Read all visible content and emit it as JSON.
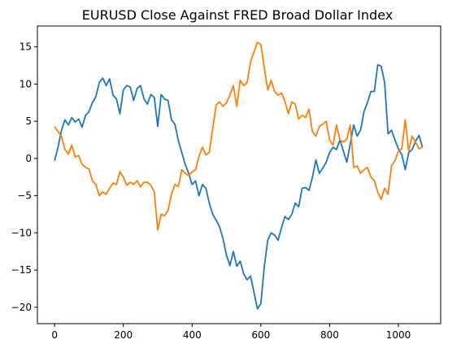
{
  "chart_data": {
    "type": "line",
    "title": "EURUSD Close Against FRED Broad Dollar Index",
    "xlabel": "",
    "ylabel": "",
    "xlim": [
      -50,
      1123
    ],
    "ylim": [
      -22.2,
      17.8
    ],
    "xticks": [
      0,
      200,
      400,
      600,
      800,
      1000
    ],
    "yticks": [
      -20,
      -15,
      -10,
      -5,
      0,
      5,
      10,
      15
    ],
    "grid": false,
    "legend": "none",
    "series": [
      {
        "color": "#1f77b4",
        "x": [
          0,
          10,
          20,
          30,
          40,
          50,
          60,
          70,
          80,
          90,
          100,
          110,
          120,
          130,
          140,
          150,
          160,
          170,
          180,
          190,
          200,
          210,
          220,
          230,
          240,
          250,
          260,
          270,
          280,
          290,
          300,
          310,
          320,
          330,
          340,
          350,
          360,
          370,
          380,
          390,
          400,
          410,
          420,
          430,
          440,
          450,
          460,
          470,
          480,
          490,
          500,
          510,
          520,
          530,
          540,
          550,
          560,
          570,
          580,
          590,
          600,
          610,
          620,
          630,
          640,
          650,
          660,
          670,
          680,
          690,
          700,
          710,
          720,
          730,
          740,
          750,
          760,
          770,
          780,
          790,
          800,
          810,
          820,
          830,
          840,
          850,
          860,
          870,
          880,
          890,
          900,
          910,
          920,
          930,
          940,
          950,
          960,
          970,
          980,
          990,
          1000,
          1010,
          1020,
          1030,
          1040,
          1050,
          1060,
          1070
        ],
        "y": [
          -0.3,
          1.5,
          3.8,
          5.2,
          4.5,
          5.5,
          4.9,
          5.3,
          4.2,
          5.8,
          6.3,
          7.5,
          8.3,
          10.2,
          10.8,
          9.8,
          10.7,
          8.5,
          8.0,
          6.0,
          9.2,
          9.8,
          9.6,
          7.8,
          9.4,
          9.8,
          8.0,
          7.3,
          8.6,
          8.2,
          4.3,
          8.6,
          8.0,
          7.8,
          5.2,
          4.6,
          2.4,
          0.8,
          -0.8,
          -2.0,
          -3.5,
          -3.0,
          -5.0,
          -3.5,
          -4.0,
          -6.0,
          -7.5,
          -8.3,
          -9.2,
          -10.8,
          -13.0,
          -14.4,
          -12.5,
          -14.5,
          -13.8,
          -15.5,
          -16.3,
          -15.8,
          -18.0,
          -20.2,
          -19.5,
          -14.5,
          -11.0,
          -10.0,
          -10.3,
          -11.0,
          -9.3,
          -7.8,
          -8.2,
          -7.5,
          -6.0,
          -6.5,
          -4.0,
          -3.9,
          -4.3,
          -2.5,
          -0.2,
          -2.0,
          -1.3,
          -0.5,
          0.8,
          1.5,
          1.2,
          2.5,
          1.0,
          -0.5,
          2.0,
          4.5,
          3.0,
          3.8,
          6.3,
          7.5,
          9.0,
          9.0,
          12.6,
          12.4,
          10.2,
          3.3,
          3.8,
          2.5,
          1.3,
          0.5,
          -1.5,
          0.8,
          1.2,
          2.3,
          3.1,
          1.5
        ]
      },
      {
        "color": "#ff7f0e",
        "x": [
          0,
          10,
          20,
          30,
          40,
          50,
          60,
          70,
          80,
          90,
          100,
          110,
          120,
          130,
          140,
          150,
          160,
          170,
          180,
          190,
          200,
          210,
          220,
          230,
          240,
          250,
          260,
          270,
          280,
          290,
          300,
          310,
          320,
          330,
          340,
          350,
          360,
          370,
          380,
          390,
          400,
          410,
          420,
          430,
          440,
          450,
          460,
          470,
          480,
          490,
          500,
          510,
          520,
          530,
          540,
          550,
          560,
          570,
          580,
          590,
          600,
          610,
          620,
          630,
          640,
          650,
          660,
          670,
          680,
          690,
          700,
          710,
          720,
          730,
          740,
          750,
          760,
          770,
          780,
          790,
          800,
          810,
          820,
          830,
          840,
          850,
          860,
          870,
          880,
          890,
          900,
          910,
          920,
          930,
          940,
          950,
          960,
          970,
          980,
          990,
          1000,
          1010,
          1020,
          1030,
          1040,
          1050,
          1060,
          1070
        ],
        "y": [
          4.3,
          3.6,
          3.0,
          1.2,
          0.6,
          1.8,
          0.2,
          0.4,
          -0.8,
          -1.2,
          -1.4,
          -3.0,
          -3.5,
          -5.0,
          -4.5,
          -4.8,
          -4.0,
          -3.3,
          -3.5,
          -1.8,
          -2.5,
          -3.6,
          -3.2,
          -3.5,
          -3.0,
          -3.8,
          -3.2,
          -3.2,
          -3.6,
          -4.5,
          -9.6,
          -7.5,
          -7.7,
          -7.0,
          -4.8,
          -3.5,
          -3.8,
          -1.5,
          -2.0,
          -2.3,
          -1.8,
          -1.5,
          0.3,
          1.5,
          0.5,
          0.8,
          4.0,
          7.2,
          7.6,
          7.0,
          7.5,
          8.5,
          9.8,
          7.0,
          10.5,
          9.8,
          10.2,
          13.0,
          14.3,
          15.6,
          15.3,
          12.2,
          9.2,
          10.5,
          9.0,
          8.5,
          8.8,
          7.7,
          6.0,
          7.6,
          7.3,
          5.3,
          5.8,
          5.5,
          6.6,
          3.6,
          3.0,
          4.3,
          4.6,
          5.0,
          2.5,
          1.8,
          4.5,
          2.5,
          2.2,
          2.6,
          4.5,
          -1.2,
          -1.0,
          -2.0,
          -1.5,
          -1.2,
          -2.5,
          -3.0,
          -4.5,
          -5.5,
          -4.0,
          -4.8,
          -1.0,
          -0.3,
          1.0,
          1.3,
          5.2,
          1.0,
          3.0,
          2.2,
          1.3,
          1.5
        ]
      }
    ]
  }
}
